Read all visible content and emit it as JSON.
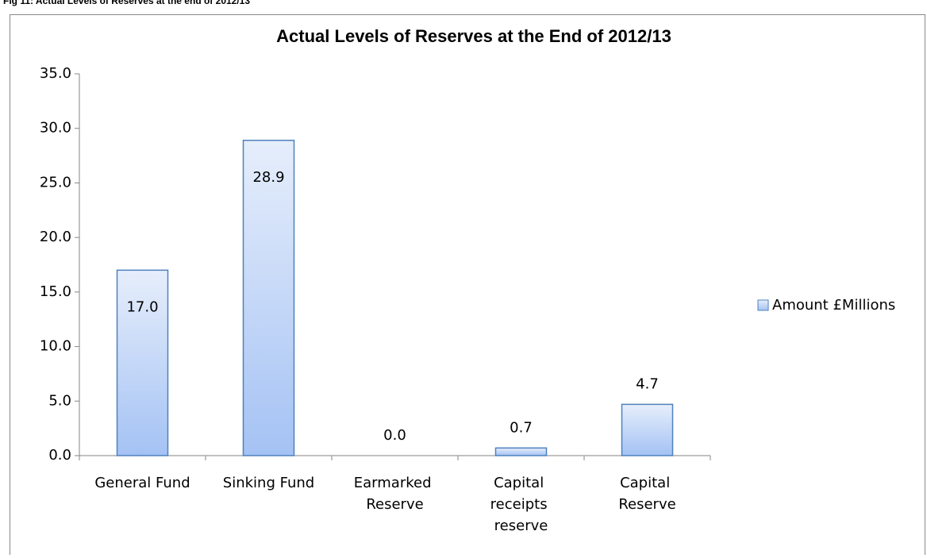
{
  "caption": "Fig 11: Actual Levels of Reserves at the end of 2012/13",
  "chart_data": {
    "type": "bar",
    "title": "Actual Levels of Reserves at the End of 2012/13",
    "categories": [
      "General Fund",
      "Sinking Fund",
      "Earmarked Reserve",
      "Capital receipts reserve",
      "Capital Reserve"
    ],
    "series": [
      {
        "name": "Amount £Millions",
        "color": "#4f81bd",
        "values": [
          17.0,
          28.9,
          0.0,
          0.7,
          4.7
        ],
        "value_labels": [
          "17.0",
          "28.9",
          "0.0",
          "0.7",
          "4.7"
        ]
      }
    ],
    "ylim": [
      0,
      35
    ],
    "yticks": [
      {
        "value": 0,
        "label": "0.0"
      },
      {
        "value": 5,
        "label": "5.0"
      },
      {
        "value": 10,
        "label": "10.0"
      },
      {
        "value": 15,
        "label": "15.0"
      },
      {
        "value": 20,
        "label": "20.0"
      },
      {
        "value": 25,
        "label": "25.0"
      },
      {
        "value": 30,
        "label": "30.0"
      },
      {
        "value": 35,
        "label": "35.0"
      }
    ],
    "grid": false,
    "legend": "right"
  }
}
